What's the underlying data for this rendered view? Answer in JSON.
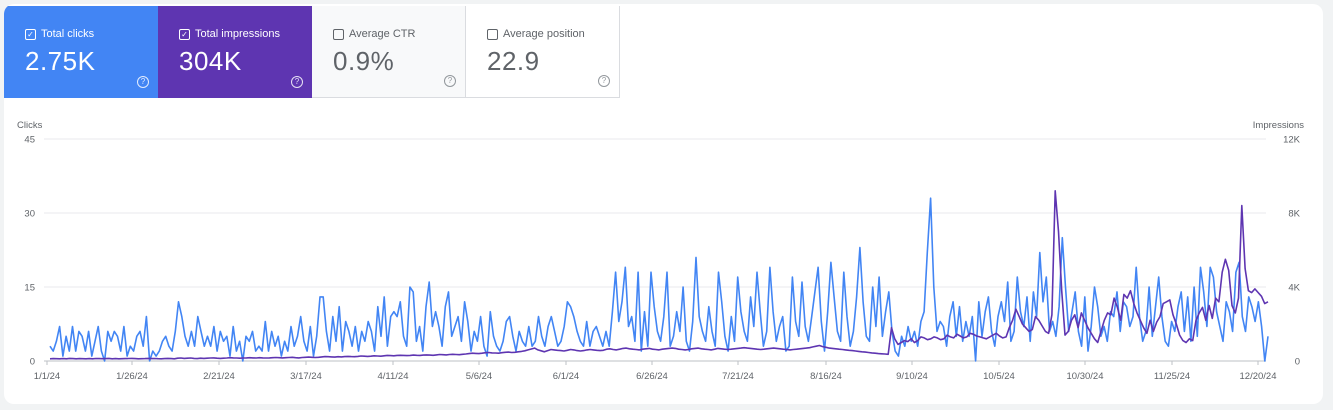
{
  "metrics": [
    {
      "label": "Total clicks",
      "value": "2.75K",
      "selected": true,
      "color": "#4285f4"
    },
    {
      "label": "Total impressions",
      "value": "304K",
      "selected": true,
      "color": "#5e35b1"
    },
    {
      "label": "Average CTR",
      "value": "0.9%",
      "selected": false,
      "color": "#00897b"
    },
    {
      "label": "Average position",
      "value": "22.9",
      "selected": false,
      "color": "#e8710a"
    }
  ],
  "chart_data": {
    "type": "line",
    "left_axis_label": "Clicks",
    "right_axis_label": "Impressions",
    "left_ticks": [
      "45",
      "30",
      "15",
      "0"
    ],
    "right_ticks": [
      "12K",
      "8K",
      "4K",
      "0"
    ],
    "ylim_left": [
      0,
      45
    ],
    "ylim_right": [
      0,
      12000
    ],
    "x_ticks": [
      "1/1/24",
      "1/26/24",
      "2/21/24",
      "3/17/24",
      "4/11/24",
      "5/6/24",
      "6/1/24",
      "6/26/24",
      "7/21/24",
      "8/16/24",
      "9/10/24",
      "10/5/24",
      "10/30/24",
      "11/25/24",
      "12/20/24"
    ],
    "x_start": "1/1/24",
    "x_end": "12/22/24",
    "grid": true,
    "series": [
      {
        "name": "Clicks",
        "axis": "left",
        "color": "#4285f4",
        "values": [
          3,
          2,
          4,
          7,
          1,
          5,
          2,
          7,
          2,
          6,
          5,
          2,
          6,
          1,
          4,
          7,
          2,
          0,
          6,
          4,
          6,
          5,
          2,
          7,
          1,
          3,
          2,
          5,
          6,
          3,
          9,
          0,
          2,
          1,
          2,
          4,
          5,
          3,
          2,
          6,
          12,
          9,
          5,
          3,
          6,
          3,
          9,
          6,
          3,
          5,
          3,
          7,
          2,
          6,
          4,
          5,
          1,
          7,
          2,
          4,
          0,
          5,
          4,
          6,
          2,
          3,
          2,
          8,
          2,
          6,
          3,
          5,
          1,
          4,
          2,
          7,
          3,
          5,
          9,
          4,
          2,
          7,
          1,
          5,
          13,
          13,
          6,
          2,
          9,
          4,
          11,
          2,
          8,
          6,
          3,
          7,
          2,
          6,
          4,
          8,
          6,
          2,
          11,
          5,
          13,
          3,
          9,
          10,
          9,
          12,
          5,
          3,
          15,
          14,
          4,
          7,
          2,
          11,
          16,
          7,
          10,
          7,
          3,
          11,
          14,
          5,
          7,
          9,
          4,
          12,
          8,
          2,
          6,
          4,
          9,
          3,
          1,
          10,
          5,
          3,
          2,
          4,
          8,
          9,
          5,
          2,
          6,
          4,
          3,
          7,
          3,
          4,
          9,
          5,
          3,
          7,
          9,
          6,
          3,
          4,
          7,
          12,
          11,
          9,
          6,
          4,
          3,
          8,
          3,
          6,
          7,
          5,
          3,
          6,
          3,
          10,
          18,
          8,
          12,
          19,
          7,
          9,
          4,
          18,
          2,
          10,
          3,
          18,
          11,
          6,
          4,
          9,
          18,
          3,
          5,
          10,
          6,
          15,
          4,
          2,
          8,
          21,
          9,
          6,
          4,
          11,
          6,
          3,
          18,
          12,
          5,
          2,
          9,
          4,
          17,
          10,
          6,
          4,
          13,
          7,
          18,
          10,
          3,
          6,
          19,
          10,
          4,
          7,
          9,
          2,
          3,
          17,
          8,
          5,
          16,
          7,
          4,
          9,
          14,
          19,
          8,
          2,
          10,
          20,
          13,
          6,
          4,
          18,
          9,
          3,
          6,
          13,
          23,
          12,
          5,
          4,
          15,
          7,
          17,
          5,
          10,
          14,
          6,
          2,
          1,
          5,
          3,
          7,
          4,
          6,
          3,
          8,
          10,
          22,
          33,
          15,
          6,
          8,
          7,
          3,
          9,
          12,
          5,
          11,
          4,
          8,
          5,
          9,
          0,
          12,
          5,
          10,
          13,
          6,
          3,
          9,
          12,
          8,
          16,
          4,
          6,
          17,
          10,
          7,
          13,
          4,
          14,
          9,
          22,
          12,
          17,
          6,
          8,
          5,
          11,
          25,
          15,
          6,
          10,
          14,
          6,
          3,
          13,
          2,
          7,
          15,
          11,
          5,
          7,
          4,
          10,
          9,
          14,
          6,
          12,
          11,
          7,
          9,
          19,
          9,
          4,
          6,
          15,
          5,
          11,
          17,
          9,
          4,
          3,
          8,
          6,
          11,
          14,
          6,
          13,
          4,
          15,
          5,
          19,
          14,
          7,
          19,
          17,
          10,
          7,
          4,
          12,
          10,
          6,
          18,
          20,
          9,
          6,
          13,
          11,
          8,
          12,
          7,
          0,
          5
        ]
      },
      {
        "name": "Impressions",
        "axis": "right",
        "color": "#5e35b1",
        "values": [
          120,
          130,
          125,
          120,
          130,
          120,
          140,
          130,
          120,
          130,
          125,
          120,
          130,
          120,
          135,
          130,
          125,
          130,
          140,
          120,
          130,
          120,
          125,
          130,
          135,
          140,
          130,
          120,
          125,
          130,
          140,
          130,
          135,
          125,
          120,
          130,
          140,
          130,
          120,
          150,
          160,
          140,
          150,
          160,
          140,
          130,
          150,
          140,
          150,
          160,
          170,
          150,
          140,
          150,
          160,
          180,
          170,
          160,
          150,
          160,
          170,
          180,
          170,
          160,
          180,
          170,
          160,
          170,
          180,
          190,
          180,
          170,
          180,
          190,
          200,
          180,
          170,
          190,
          200,
          210,
          200,
          190,
          200,
          220,
          240,
          230,
          220,
          210,
          230,
          220,
          240,
          250,
          240,
          230,
          250,
          270,
          260,
          250,
          260,
          280,
          270,
          260,
          280,
          300,
          290,
          280,
          300,
          310,
          300,
          290,
          300,
          320,
          310,
          300,
          320,
          330,
          320,
          310,
          330,
          350,
          340,
          330,
          350,
          360,
          350,
          340,
          360,
          380,
          400,
          420,
          410,
          400,
          420,
          450,
          460,
          440,
          430,
          420,
          450,
          470,
          480,
          460,
          470,
          500,
          520,
          550,
          600,
          650,
          700,
          600,
          550,
          500,
          560,
          620,
          600,
          580,
          560,
          540,
          580,
          620,
          600,
          560,
          540,
          560,
          600,
          620,
          600,
          580,
          560,
          580,
          640,
          660,
          620,
          600,
          640,
          680,
          700,
          660,
          640,
          620,
          600,
          640,
          660,
          680,
          640,
          620,
          600,
          640,
          660,
          680,
          700,
          680,
          640,
          620,
          600,
          620,
          660,
          680,
          700,
          660,
          640,
          620,
          600,
          640,
          680,
          660,
          640,
          620,
          640,
          660,
          680,
          700,
          720,
          700,
          680,
          660,
          640,
          620,
          640,
          660,
          680,
          700,
          680,
          660,
          640,
          620,
          600,
          620,
          640,
          660,
          680,
          700,
          720,
          760,
          800,
          840,
          780,
          740,
          700,
          680,
          660,
          640,
          620,
          600,
          580,
          560,
          540,
          520,
          500,
          480,
          460,
          440,
          420,
          400,
          390,
          380,
          360,
          1800,
          1200,
          900,
          1000,
          1100,
          1050,
          1200,
          1000,
          1100,
          1300,
          1250,
          1150,
          1200,
          1300,
          1250,
          1150,
          1200,
          1400,
          1300,
          1250,
          1450,
          1350,
          1250,
          1300,
          1500,
          1450,
          1350,
          1300,
          1250,
          1200,
          1300,
          1400,
          1500,
          1350,
          1250,
          1300,
          1800,
          2200,
          2800,
          2400,
          2000,
          1800,
          1600,
          1700,
          2400,
          2200,
          1900,
          1600,
          1500,
          2500,
          9200,
          7000,
          3800,
          1400,
          1600,
          2200,
          2500,
          1800,
          2600,
          2200,
          1800,
          1500,
          1200,
          1000,
          1600,
          2200,
          2600,
          2500,
          3400,
          2900,
          2200,
          3600,
          3400,
          3800,
          3100,
          2600,
          2200,
          1800,
          1500,
          2200,
          1600,
          2100,
          2400,
          3100,
          3200,
          3300,
          2500,
          2000,
          1400,
          1100,
          1000,
          1200,
          1100,
          2200,
          2600,
          2900,
          2200,
          3000,
          2300,
          3400,
          3200,
          4800,
          5500,
          4900,
          3000,
          2600,
          3400,
          8400,
          5000,
          3800,
          3700,
          3900,
          3700,
          3500,
          3100,
          3200
        ]
      }
    ]
  }
}
